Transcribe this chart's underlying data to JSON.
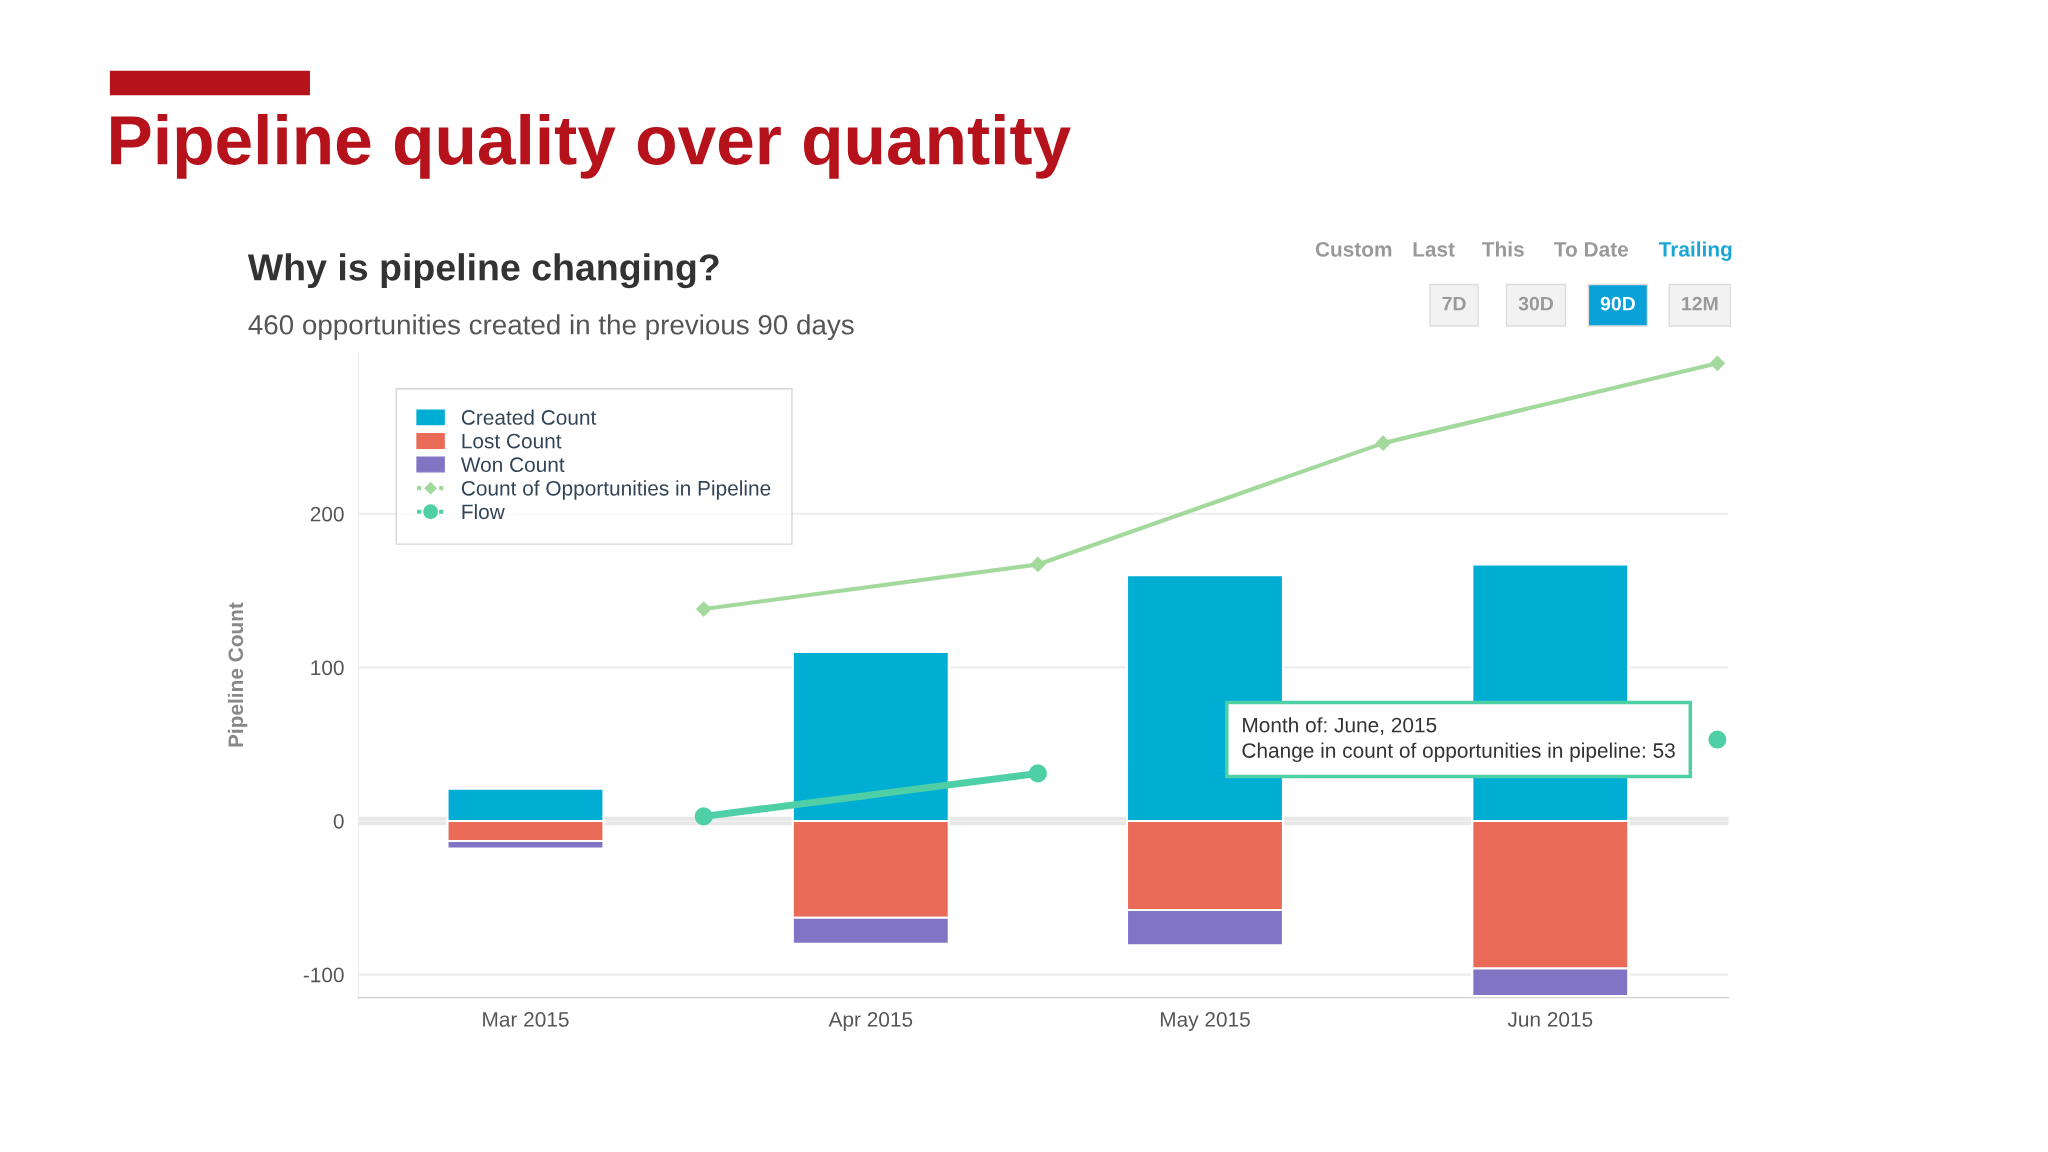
{
  "chart_data": {
    "type": "bar",
    "title": "Pipeline quality over quantity",
    "subtitle": "Why is pipeline changing?",
    "ylabel": "Pipeline Count",
    "x": [
      "2015-03-16",
      "2015-04-16",
      "2015-05-16",
      "2015-06-16"
    ],
    "xlim": [
      "2015-03-01",
      "2015-07-02"
    ],
    "xticks": [
      {
        "value": "2015-03-16",
        "label": "Mar 2015"
      },
      {
        "value": "2015-04-16",
        "label": "Apr 2015"
      },
      {
        "value": "2015-05-16",
        "label": "May 2015"
      },
      {
        "value": "2015-06-16",
        "label": "Jun 2015"
      }
    ],
    "ylim": [
      -115,
      305
    ],
    "yticks": [
      -100,
      0,
      100,
      200
    ],
    "stacked": true,
    "grid": "y",
    "legend": "top left",
    "series": [
      {
        "name": "Created Count",
        "color": "#00aed4",
        "values": [
          21,
          110,
          160,
          167
        ]
      },
      {
        "name": "Lost Count",
        "color": "#e96a57",
        "values": [
          -13,
          -63,
          -58,
          -96
        ]
      },
      {
        "name": "Won Count",
        "color": "#8174c4",
        "values": [
          -5,
          -17,
          -23,
          -18
        ]
      },
      {
        "name": "Count of Opportunities in Pipeline",
        "type": "line",
        "color": "#a3d99c",
        "marker": "diamond",
        "x": [
          "2015-04-01",
          "2015-05-01",
          "2015-06-01",
          "2015-07-01"
        ],
        "values": [
          138,
          167,
          246,
          298
        ]
      },
      {
        "name": "Flow",
        "type": "line",
        "color": "#4ecfa5",
        "marker": "circle",
        "x": [
          "2015-04-01",
          "2015-05-01",
          "2015-06-01",
          "2015-07-01"
        ],
        "values": [
          3,
          31,
          null,
          53
        ]
      }
    ],
    "annotations": [
      "460 opportunities created in the previous 90 days",
      "Custom",
      "Last",
      "This",
      "To Date",
      "Trailing",
      "7D",
      "30D",
      "90D",
      "12M",
      {
        "text": "Month of: June, 2015\nChange in count of opportunities in pipeline: 53",
        "x": "2015-07-01",
        "y": 53
      }
    ]
  }
}
